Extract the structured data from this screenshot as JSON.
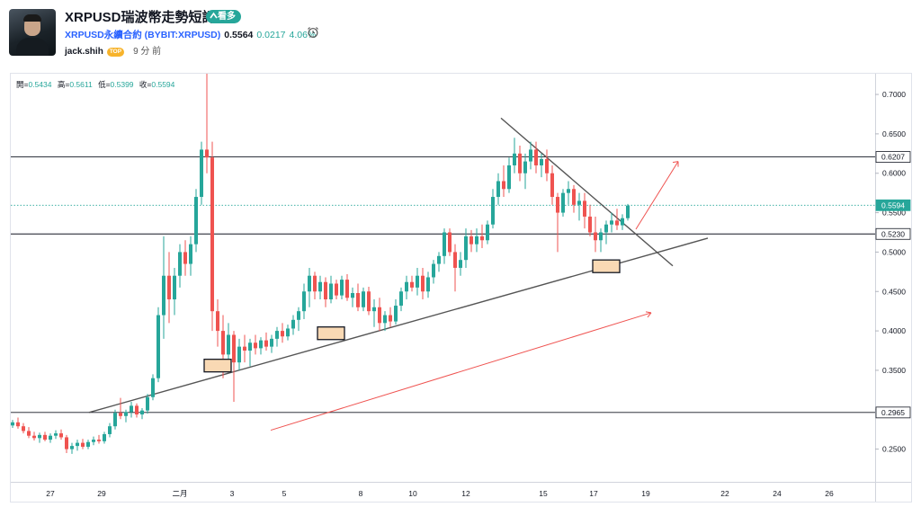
{
  "header": {
    "title": "XRPUSD瑞波幣走勢短評",
    "badge": "看多",
    "symbol": "XRPUSD永續合約 (BYBIT:XRPUSD)",
    "price": "0.5564",
    "change": "0.0217",
    "change_pct": "4.06%",
    "author": "jack.shih",
    "author_badge": "TOP",
    "time": "9 分 前"
  },
  "ohlc": {
    "open_label": "開=",
    "open": "0.5434",
    "high_label": "高=",
    "high": "0.5611",
    "low_label": "低=",
    "low": "0.5399",
    "close_label": "收=",
    "close": "0.5594"
  },
  "colors": {
    "up": "#26a69a",
    "down": "#ef5350",
    "accent": "#2962ff",
    "badge": "#26a69a",
    "box": "#f9d9b4",
    "line": "#555555"
  },
  "chart_data": {
    "type": "candlestick",
    "ylim": [
      0.2085,
      0.7263
    ],
    "y_ticks": [
      "0.2500",
      "0.3000",
      "0.3500",
      "0.4000",
      "0.4500",
      "0.5000",
      "0.5500",
      "0.6000",
      "0.6500",
      "0.7000"
    ],
    "x_ticks": [
      "27",
      "29",
      "二月",
      "3",
      "5",
      "8",
      "10",
      "12",
      "15",
      "17",
      "19",
      "22",
      "24",
      "26"
    ],
    "price_labels": [
      {
        "value": "0.6207",
        "kind": "line"
      },
      {
        "value": "0.5594",
        "kind": "current"
      },
      {
        "value": "0.5230",
        "kind": "line"
      },
      {
        "value": "0.2965",
        "kind": "line"
      }
    ],
    "horizontal_levels": [
      0.6207,
      0.523,
      0.2965
    ],
    "current_price": 0.5594,
    "candles": [
      [
        0,
        0.28,
        0.287,
        0.277,
        0.284
      ],
      [
        1,
        0.284,
        0.29,
        0.276,
        0.279
      ],
      [
        2,
        0.279,
        0.283,
        0.27,
        0.273
      ],
      [
        3,
        0.273,
        0.278,
        0.264,
        0.267
      ],
      [
        4,
        0.267,
        0.272,
        0.261,
        0.264
      ],
      [
        5,
        0.264,
        0.271,
        0.258,
        0.268
      ],
      [
        6,
        0.268,
        0.272,
        0.26,
        0.262
      ],
      [
        7,
        0.262,
        0.27,
        0.258,
        0.267
      ],
      [
        8,
        0.267,
        0.274,
        0.263,
        0.27
      ],
      [
        9,
        0.27,
        0.275,
        0.262,
        0.265
      ],
      [
        10,
        0.265,
        0.268,
        0.245,
        0.25
      ],
      [
        11,
        0.25,
        0.258,
        0.244,
        0.254
      ],
      [
        12,
        0.254,
        0.262,
        0.248,
        0.258
      ],
      [
        13,
        0.258,
        0.263,
        0.25,
        0.253
      ],
      [
        14,
        0.253,
        0.262,
        0.25,
        0.259
      ],
      [
        15,
        0.259,
        0.266,
        0.255,
        0.262
      ],
      [
        16,
        0.262,
        0.268,
        0.257,
        0.26
      ],
      [
        17,
        0.26,
        0.272,
        0.257,
        0.269
      ],
      [
        18,
        0.269,
        0.283,
        0.265,
        0.279
      ],
      [
        19,
        0.279,
        0.3,
        0.275,
        0.296
      ],
      [
        20,
        0.296,
        0.315,
        0.288,
        0.292
      ],
      [
        21,
        0.292,
        0.3,
        0.284,
        0.297
      ],
      [
        22,
        0.297,
        0.31,
        0.29,
        0.305
      ],
      [
        23,
        0.305,
        0.308,
        0.29,
        0.294
      ],
      [
        24,
        0.294,
        0.302,
        0.288,
        0.299
      ],
      [
        25,
        0.299,
        0.32,
        0.295,
        0.316
      ],
      [
        26,
        0.316,
        0.345,
        0.312,
        0.34
      ],
      [
        27,
        0.34,
        0.43,
        0.335,
        0.42
      ],
      [
        28,
        0.42,
        0.52,
        0.39,
        0.47
      ],
      [
        29,
        0.47,
        0.5,
        0.41,
        0.44
      ],
      [
        30,
        0.44,
        0.48,
        0.42,
        0.47
      ],
      [
        31,
        0.47,
        0.51,
        0.455,
        0.5
      ],
      [
        32,
        0.5,
        0.515,
        0.47,
        0.485
      ],
      [
        33,
        0.485,
        0.52,
        0.47,
        0.51
      ],
      [
        34,
        0.51,
        0.58,
        0.5,
        0.57
      ],
      [
        35,
        0.57,
        0.64,
        0.56,
        0.63
      ],
      [
        36,
        0.63,
        0.73,
        0.6,
        0.62
      ],
      [
        37,
        0.62,
        0.64,
        0.4,
        0.425
      ],
      [
        38,
        0.425,
        0.44,
        0.38,
        0.4
      ],
      [
        39,
        0.4,
        0.42,
        0.34,
        0.37
      ],
      [
        40,
        0.37,
        0.41,
        0.35,
        0.395
      ],
      [
        41,
        0.395,
        0.4,
        0.31,
        0.36
      ],
      [
        42,
        0.36,
        0.39,
        0.35,
        0.38
      ],
      [
        43,
        0.38,
        0.395,
        0.36,
        0.375
      ],
      [
        44,
        0.375,
        0.39,
        0.355,
        0.385
      ],
      [
        45,
        0.385,
        0.395,
        0.37,
        0.378
      ],
      [
        46,
        0.378,
        0.392,
        0.37,
        0.388
      ],
      [
        47,
        0.388,
        0.398,
        0.375,
        0.38
      ],
      [
        48,
        0.38,
        0.395,
        0.372,
        0.39
      ],
      [
        49,
        0.39,
        0.405,
        0.38,
        0.4
      ],
      [
        50,
        0.4,
        0.41,
        0.385,
        0.393
      ],
      [
        51,
        0.393,
        0.408,
        0.388,
        0.403
      ],
      [
        52,
        0.403,
        0.42,
        0.395,
        0.414
      ],
      [
        53,
        0.414,
        0.43,
        0.4,
        0.425
      ],
      [
        54,
        0.425,
        0.46,
        0.415,
        0.45
      ],
      [
        55,
        0.45,
        0.48,
        0.43,
        0.47
      ],
      [
        56,
        0.47,
        0.475,
        0.44,
        0.45
      ],
      [
        57,
        0.45,
        0.47,
        0.44,
        0.462
      ],
      [
        58,
        0.462,
        0.468,
        0.43,
        0.44
      ],
      [
        59,
        0.44,
        0.47,
        0.435,
        0.46
      ],
      [
        60,
        0.46,
        0.465,
        0.44,
        0.445
      ],
      [
        61,
        0.445,
        0.47,
        0.44,
        0.465
      ],
      [
        62,
        0.465,
        0.472,
        0.438,
        0.442
      ],
      [
        63,
        0.442,
        0.455,
        0.43,
        0.448
      ],
      [
        64,
        0.448,
        0.46,
        0.425,
        0.43
      ],
      [
        65,
        0.43,
        0.455,
        0.425,
        0.45
      ],
      [
        66,
        0.45,
        0.456,
        0.42,
        0.425
      ],
      [
        67,
        0.425,
        0.44,
        0.405,
        0.43
      ],
      [
        68,
        0.43,
        0.442,
        0.4,
        0.41
      ],
      [
        69,
        0.41,
        0.425,
        0.4,
        0.42
      ],
      [
        70,
        0.42,
        0.43,
        0.405,
        0.412
      ],
      [
        71,
        0.412,
        0.44,
        0.408,
        0.432
      ],
      [
        72,
        0.432,
        0.455,
        0.425,
        0.45
      ],
      [
        73,
        0.45,
        0.47,
        0.44,
        0.462
      ],
      [
        74,
        0.462,
        0.47,
        0.45,
        0.455
      ],
      [
        75,
        0.455,
        0.48,
        0.445,
        0.47
      ],
      [
        76,
        0.47,
        0.48,
        0.44,
        0.45
      ],
      [
        77,
        0.45,
        0.475,
        0.442,
        0.468
      ],
      [
        78,
        0.468,
        0.49,
        0.46,
        0.485
      ],
      [
        79,
        0.485,
        0.5,
        0.475,
        0.495
      ],
      [
        80,
        0.495,
        0.53,
        0.485,
        0.525
      ],
      [
        81,
        0.525,
        0.53,
        0.495,
        0.5
      ],
      [
        82,
        0.5,
        0.51,
        0.45,
        0.48
      ],
      [
        83,
        0.48,
        0.5,
        0.47,
        0.49
      ],
      [
        84,
        0.49,
        0.53,
        0.48,
        0.52
      ],
      [
        85,
        0.52,
        0.528,
        0.5,
        0.51
      ],
      [
        86,
        0.51,
        0.53,
        0.5,
        0.52
      ],
      [
        87,
        0.52,
        0.535,
        0.505,
        0.515
      ],
      [
        88,
        0.515,
        0.54,
        0.51,
        0.535
      ],
      [
        89,
        0.535,
        0.58,
        0.53,
        0.57
      ],
      [
        90,
        0.57,
        0.6,
        0.56,
        0.59
      ],
      [
        91,
        0.59,
        0.61,
        0.57,
        0.58
      ],
      [
        92,
        0.58,
        0.62,
        0.575,
        0.61
      ],
      [
        93,
        0.61,
        0.645,
        0.6,
        0.625
      ],
      [
        94,
        0.625,
        0.635,
        0.59,
        0.6
      ],
      [
        95,
        0.6,
        0.625,
        0.58,
        0.615
      ],
      [
        96,
        0.615,
        0.64,
        0.605,
        0.63
      ],
      [
        97,
        0.63,
        0.64,
        0.6,
        0.61
      ],
      [
        98,
        0.61,
        0.625,
        0.595,
        0.618
      ],
      [
        99,
        0.618,
        0.63,
        0.59,
        0.6
      ],
      [
        100,
        0.6,
        0.61,
        0.56,
        0.57
      ],
      [
        101,
        0.57,
        0.575,
        0.5,
        0.55
      ],
      [
        102,
        0.55,
        0.58,
        0.545,
        0.575
      ],
      [
        103,
        0.575,
        0.59,
        0.56,
        0.58
      ],
      [
        104,
        0.58,
        0.585,
        0.55,
        0.56
      ],
      [
        105,
        0.56,
        0.575,
        0.54,
        0.565
      ],
      [
        106,
        0.565,
        0.575,
        0.53,
        0.545
      ],
      [
        107,
        0.545,
        0.56,
        0.52,
        0.525
      ],
      [
        108,
        0.525,
        0.545,
        0.5,
        0.515
      ],
      [
        109,
        0.515,
        0.53,
        0.5,
        0.525
      ],
      [
        110,
        0.525,
        0.54,
        0.51,
        0.535
      ],
      [
        111,
        0.535,
        0.55,
        0.525,
        0.54
      ],
      [
        112,
        0.54,
        0.555,
        0.528,
        0.534
      ],
      [
        113,
        0.534,
        0.548,
        0.528,
        0.543
      ],
      [
        114,
        0.543,
        0.561,
        0.54,
        0.559
      ]
    ],
    "support_zones": [
      {
        "date_index": 38,
        "low": 0.348,
        "high": 0.364
      },
      {
        "date_index": 59,
        "low": 0.389,
        "high": 0.405
      },
      {
        "date_index": 110,
        "low": 0.474,
        "high": 0.49
      }
    ]
  }
}
